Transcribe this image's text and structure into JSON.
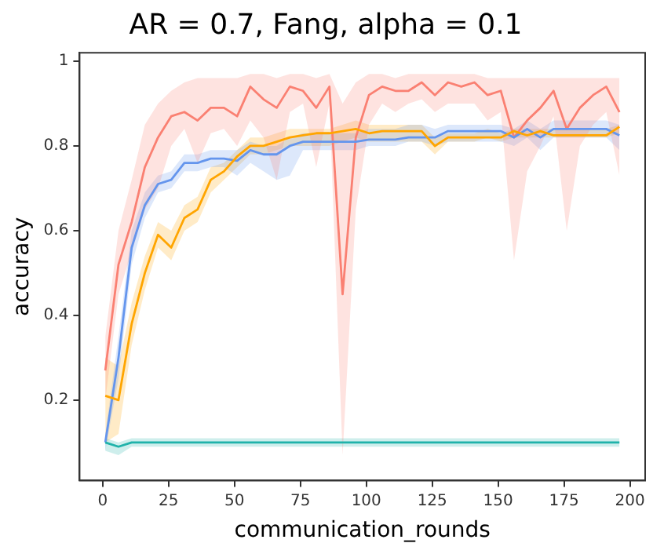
{
  "chart_data": {
    "type": "line",
    "title": "AR = 0.7, Fang, alpha = 0.1",
    "xlabel": "communication_rounds",
    "ylabel": "accuracy",
    "x": [
      1,
      6,
      11,
      16,
      21,
      26,
      31,
      36,
      41,
      46,
      51,
      56,
      61,
      66,
      71,
      76,
      81,
      86,
      91,
      96,
      101,
      106,
      111,
      116,
      121,
      126,
      131,
      136,
      141,
      146,
      151,
      156,
      161,
      166,
      171,
      176,
      181,
      186,
      191,
      196
    ],
    "xlim": [
      -8.75,
      205.75
    ],
    "xticks": [
      0,
      25,
      50,
      75,
      100,
      125,
      150,
      175,
      200
    ],
    "ylim": [
      0.01,
      1.02
    ],
    "yticks": [
      0.2,
      0.4,
      0.6,
      0.8,
      1.0
    ],
    "grid": false,
    "legend": false,
    "marker": "none",
    "line_style": "solid",
    "series": [
      {
        "color": "#fa8072",
        "values": [
          0.27,
          0.52,
          0.62,
          0.75,
          0.82,
          0.87,
          0.88,
          0.86,
          0.89,
          0.89,
          0.87,
          0.94,
          0.91,
          0.89,
          0.94,
          0.93,
          0.89,
          0.94,
          0.45,
          0.82,
          0.92,
          0.94,
          0.93,
          0.93,
          0.95,
          0.92,
          0.95,
          0.94,
          0.95,
          0.92,
          0.93,
          0.82,
          0.86,
          0.89,
          0.93,
          0.84,
          0.89,
          0.92,
          0.94,
          0.88
        ],
        "lower": [
          0.2,
          0.45,
          0.55,
          0.65,
          0.7,
          0.8,
          0.84,
          0.76,
          0.83,
          0.84,
          0.8,
          0.86,
          0.82,
          0.72,
          0.88,
          0.9,
          0.75,
          0.9,
          0.07,
          0.65,
          0.85,
          0.9,
          0.88,
          0.9,
          0.91,
          0.88,
          0.9,
          0.9,
          0.9,
          0.86,
          0.88,
          0.53,
          0.74,
          0.8,
          0.87,
          0.6,
          0.8,
          0.85,
          0.88,
          0.73
        ],
        "upper": [
          0.35,
          0.6,
          0.72,
          0.85,
          0.9,
          0.93,
          0.95,
          0.96,
          0.96,
          0.96,
          0.96,
          0.97,
          0.97,
          0.96,
          0.97,
          0.97,
          0.96,
          0.97,
          0.9,
          0.95,
          0.97,
          0.97,
          0.96,
          0.97,
          0.97,
          0.97,
          0.97,
          0.97,
          0.97,
          0.96,
          0.96,
          0.96,
          0.96,
          0.96,
          0.96,
          0.96,
          0.96,
          0.96,
          0.96,
          0.96
        ]
      },
      {
        "color": "#6495ed",
        "values": [
          0.1,
          0.3,
          0.56,
          0.66,
          0.71,
          0.72,
          0.76,
          0.76,
          0.77,
          0.77,
          0.765,
          0.79,
          0.78,
          0.78,
          0.8,
          0.81,
          0.81,
          0.81,
          0.81,
          0.81,
          0.815,
          0.815,
          0.815,
          0.82,
          0.82,
          0.82,
          0.835,
          0.835,
          0.835,
          0.835,
          0.835,
          0.82,
          0.84,
          0.82,
          0.84,
          0.84,
          0.84,
          0.84,
          0.84,
          0.825
        ],
        "lower": [
          0.08,
          0.25,
          0.52,
          0.63,
          0.69,
          0.7,
          0.74,
          0.74,
          0.75,
          0.75,
          0.73,
          0.76,
          0.74,
          0.72,
          0.73,
          0.79,
          0.79,
          0.79,
          0.79,
          0.79,
          0.8,
          0.8,
          0.8,
          0.81,
          0.81,
          0.8,
          0.81,
          0.81,
          0.81,
          0.81,
          0.81,
          0.8,
          0.82,
          0.79,
          0.82,
          0.82,
          0.82,
          0.82,
          0.82,
          0.79
        ],
        "upper": [
          0.12,
          0.35,
          0.6,
          0.69,
          0.73,
          0.74,
          0.78,
          0.78,
          0.79,
          0.79,
          0.79,
          0.81,
          0.8,
          0.8,
          0.82,
          0.83,
          0.83,
          0.83,
          0.83,
          0.83,
          0.84,
          0.84,
          0.84,
          0.85,
          0.85,
          0.84,
          0.85,
          0.85,
          0.85,
          0.85,
          0.85,
          0.84,
          0.86,
          0.84,
          0.86,
          0.86,
          0.86,
          0.86,
          0.86,
          0.85
        ]
      },
      {
        "color": "#ffa500",
        "values": [
          0.21,
          0.2,
          0.38,
          0.5,
          0.59,
          0.56,
          0.63,
          0.65,
          0.72,
          0.74,
          0.775,
          0.8,
          0.8,
          0.81,
          0.82,
          0.825,
          0.83,
          0.83,
          0.835,
          0.84,
          0.83,
          0.835,
          0.835,
          0.835,
          0.835,
          0.8,
          0.82,
          0.82,
          0.82,
          0.82,
          0.82,
          0.835,
          0.825,
          0.835,
          0.825,
          0.825,
          0.825,
          0.825,
          0.825,
          0.845
        ],
        "lower": [
          0.1,
          0.12,
          0.33,
          0.46,
          0.56,
          0.53,
          0.6,
          0.62,
          0.69,
          0.72,
          0.75,
          0.78,
          0.78,
          0.79,
          0.8,
          0.8,
          0.8,
          0.8,
          0.81,
          0.82,
          0.81,
          0.81,
          0.81,
          0.81,
          0.81,
          0.78,
          0.81,
          0.81,
          0.81,
          0.82,
          0.81,
          0.82,
          0.82,
          0.82,
          0.82,
          0.82,
          0.82,
          0.82,
          0.82,
          0.83
        ],
        "upper": [
          0.3,
          0.28,
          0.43,
          0.54,
          0.62,
          0.6,
          0.66,
          0.68,
          0.75,
          0.76,
          0.79,
          0.82,
          0.82,
          0.83,
          0.84,
          0.84,
          0.84,
          0.84,
          0.85,
          0.86,
          0.85,
          0.85,
          0.85,
          0.85,
          0.85,
          0.82,
          0.83,
          0.83,
          0.83,
          0.84,
          0.83,
          0.84,
          0.84,
          0.84,
          0.84,
          0.84,
          0.84,
          0.84,
          0.84,
          0.85
        ]
      },
      {
        "color": "#20b2aa",
        "values": [
          0.1,
          0.09,
          0.1,
          0.1,
          0.1,
          0.1,
          0.1,
          0.1,
          0.1,
          0.1,
          0.1,
          0.1,
          0.1,
          0.1,
          0.1,
          0.1,
          0.1,
          0.1,
          0.1,
          0.1,
          0.1,
          0.1,
          0.1,
          0.1,
          0.1,
          0.1,
          0.1,
          0.1,
          0.1,
          0.1,
          0.1,
          0.1,
          0.1,
          0.1,
          0.1,
          0.1,
          0.1,
          0.1,
          0.1,
          0.1
        ],
        "lower": [
          0.08,
          0.07,
          0.09,
          0.09,
          0.09,
          0.09,
          0.09,
          0.09,
          0.09,
          0.09,
          0.09,
          0.09,
          0.09,
          0.09,
          0.09,
          0.09,
          0.09,
          0.09,
          0.09,
          0.09,
          0.09,
          0.09,
          0.09,
          0.09,
          0.09,
          0.09,
          0.09,
          0.09,
          0.09,
          0.09,
          0.09,
          0.09,
          0.09,
          0.09,
          0.09,
          0.09,
          0.09,
          0.09,
          0.09,
          0.09
        ],
        "upper": [
          0.11,
          0.1,
          0.11,
          0.11,
          0.11,
          0.11,
          0.11,
          0.11,
          0.11,
          0.11,
          0.11,
          0.11,
          0.11,
          0.11,
          0.11,
          0.11,
          0.11,
          0.11,
          0.11,
          0.11,
          0.11,
          0.11,
          0.11,
          0.11,
          0.11,
          0.11,
          0.11,
          0.11,
          0.11,
          0.11,
          0.11,
          0.11,
          0.11,
          0.11,
          0.11,
          0.11,
          0.11,
          0.11,
          0.11,
          0.11
        ]
      }
    ]
  }
}
